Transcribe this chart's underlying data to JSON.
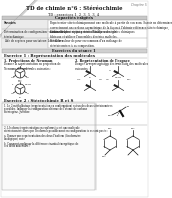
{
  "title": "TD de chimie n°6 : Stéréochimie",
  "subtitle": "TD : exercices 1, 2, 3, 5, 3, 4",
  "chapter_label": "Chapitre 5",
  "capacites_header": "Capacités exigées",
  "savoirs_label": "Savoirs",
  "row1_left": "Détermination de configuration - nomenclature\nstéréochimique",
  "row2_left": "Aide de repères pour un tuteur: Les chières",
  "row0_right": "Représenter stéréochimiquement une molécule à partir de son nom. Savoir en déterminer\ncorrectement un carbone asymétrique de la façon à l'obtenir référence stéréochimique,\nau niveau lycré ce qui permis d'établir une règle.",
  "row1_right": "Utiliser les descriptions stéréochimiques des cartes chimiques\nfibéraux et utiliser l'ensembles deséries molécles.",
  "row2_right": "Rétablir valeur de pour-en-commun d'un mélange de\nstéréoisomères à sa composition.",
  "seance_header": "Exercices du séance 1",
  "ex1_title": "Exercice 1 : Représentation des molécules",
  "ex1_p1": "1. Projections de Newman",
  "ex1_p1_text": "Donner la représentation en projection de\nNewman des molécules suivantes :",
  "ex1_p2": "2. Représentation de l'espace",
  "ex1_p2_text": "Donner la représentation des trois faits des molécules\nsuivantes :",
  "ex2_title": "Exercice 2 : Stéréochimie R et S",
  "ex2_p1": "1. Le 2-méthylbutane (représentation en conformation) est un des deux stéréoisomères",
  "ex2_p1b": "possibles. Indiquer la configuration obtenue de l'atome de carbone",
  "ex2_p1c": "stéréogène. Justifier.",
  "ex2_p2": "2. L'isoform (représentation en conforms) a est une molécule",
  "ex2_p2b": "stéréoisomère alors que l'isoform b possiblement en configuration in es sont posée :",
  "ex2_p2c": "a. Donner une représentation des deux l'isoform (l'isoformére",
  "ex2_p2d": "biológique) enée",
  "ex2_p2e": "b. Comment expliquer la différence énantial énergétique de",
  "ex2_p2f": "ces deux molécules ?",
  "bg_color": "#ffffff",
  "text_color": "#111111",
  "gray_bg": "#cccccc",
  "table_left_bg": "#e8e8e8",
  "border_color": "#999999"
}
